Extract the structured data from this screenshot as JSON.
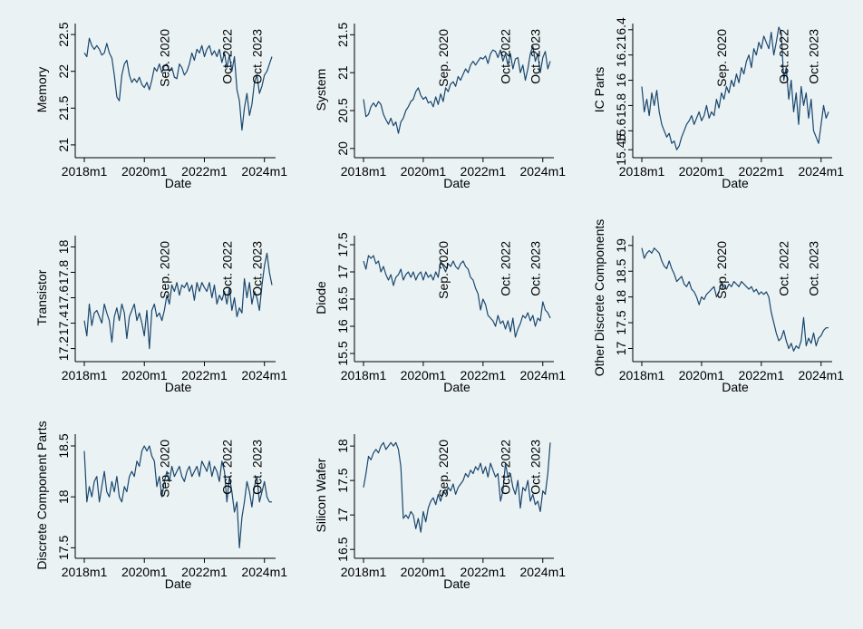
{
  "figure": {
    "x_axis_title": "Date",
    "x_ticks": [
      "2018m1",
      "2020m1",
      "2022m1",
      "2024m1"
    ],
    "annotations": [
      "Sep. 2020",
      "Oct. 2022",
      "Oct. 2023"
    ]
  },
  "chart_data": [
    {
      "type": "line",
      "ylabel": "Memory",
      "xlabel": "Date",
      "ylim": [
        20.9,
        22.6
      ],
      "y_ticks": [
        {
          "label": "21",
          "value": 21
        },
        {
          "label": "21.5",
          "value": 21.5
        },
        {
          "label": "22",
          "value": 22
        },
        {
          "label": "22.5",
          "value": 22.5
        }
      ],
      "start": "2018-01",
      "values": [
        22.25,
        22.2,
        22.45,
        22.35,
        22.3,
        22.35,
        22.3,
        22.22,
        22.25,
        22.38,
        22.25,
        22.18,
        21.95,
        21.65,
        21.6,
        21.95,
        22.1,
        22.15,
        21.95,
        21.85,
        21.9,
        21.85,
        21.92,
        21.82,
        21.78,
        21.85,
        21.75,
        21.88,
        22.05,
        22.0,
        22.1,
        21.98,
        22.08,
        22.1,
        22.0,
        22.05,
        21.92,
        21.9,
        22.1,
        22.05,
        21.95,
        22.0,
        22.1,
        22.25,
        22.15,
        22.3,
        22.25,
        22.35,
        22.2,
        22.3,
        22.35,
        22.22,
        22.28,
        22.2,
        22.3,
        22.12,
        22.25,
        22.05,
        22.22,
        22.0,
        22.2,
        21.75,
        21.6,
        21.2,
        21.5,
        21.7,
        21.4,
        21.55,
        21.85,
        21.95,
        21.7,
        21.8,
        21.95,
        22.0,
        22.1,
        22.2
      ],
      "marker_lines": [
        "2020-09",
        "2022-10",
        "2023-10"
      ]
    },
    {
      "type": "line",
      "ylabel": "System",
      "xlabel": "Date",
      "ylim": [
        19.95,
        21.6
      ],
      "y_ticks": [
        {
          "label": "20",
          "value": 20
        },
        {
          "label": "20.5",
          "value": 20.5
        },
        {
          "label": "21",
          "value": 21
        },
        {
          "label": "21.5",
          "value": 21.5
        }
      ],
      "start": "2018-01",
      "values": [
        20.65,
        20.42,
        20.45,
        20.55,
        20.6,
        20.55,
        20.62,
        20.58,
        20.45,
        20.38,
        20.32,
        20.4,
        20.3,
        20.35,
        20.2,
        20.35,
        20.4,
        20.5,
        20.55,
        20.62,
        20.65,
        20.75,
        20.8,
        20.7,
        20.65,
        20.68,
        20.6,
        20.62,
        20.55,
        20.68,
        20.58,
        20.72,
        20.62,
        20.8,
        20.75,
        20.85,
        20.88,
        20.82,
        20.95,
        20.9,
        20.98,
        21.05,
        21.0,
        21.1,
        21.15,
        21.1,
        21.15,
        21.2,
        21.18,
        21.22,
        21.12,
        21.25,
        21.3,
        21.28,
        21.2,
        21.3,
        21.15,
        21.25,
        21.1,
        21.25,
        21.05,
        21.18,
        21.2,
        21.0,
        21.1,
        20.9,
        21.05,
        21.25,
        21.35,
        21.15,
        21.25,
        21.0,
        21.2,
        21.28,
        21.05,
        21.15
      ],
      "marker_lines": [
        "2020-09",
        "2022-10",
        "2023-10"
      ]
    },
    {
      "type": "line",
      "ylabel": "IC Parts",
      "xlabel": "Date",
      "ylim": [
        15.43,
        16.42
      ],
      "y_ticks": [
        {
          "label": "15.45",
          "value": 15.45
        },
        {
          "label": "15.6",
          "value": 15.6
        },
        {
          "label": "15.8",
          "value": 15.8
        },
        {
          "label": "16",
          "value": 16
        },
        {
          "label": "16.2",
          "value": 16.2
        },
        {
          "label": "16.4",
          "value": 16.4
        }
      ],
      "start": "2018-01",
      "values": [
        15.95,
        15.75,
        15.85,
        15.72,
        15.9,
        15.8,
        15.92,
        15.75,
        15.65,
        15.6,
        15.55,
        15.58,
        15.5,
        15.52,
        15.45,
        15.48,
        15.55,
        15.6,
        15.65,
        15.68,
        15.72,
        15.65,
        15.7,
        15.75,
        15.68,
        15.72,
        15.8,
        15.7,
        15.75,
        15.72,
        15.85,
        15.78,
        15.9,
        15.85,
        15.95,
        15.9,
        16.0,
        15.95,
        16.05,
        15.98,
        16.1,
        16.05,
        16.15,
        16.2,
        16.1,
        16.25,
        16.2,
        16.3,
        16.25,
        16.35,
        16.3,
        16.25,
        16.38,
        16.2,
        16.3,
        16.42,
        16.38,
        16.0,
        16.1,
        15.85,
        16.0,
        15.75,
        15.9,
        15.65,
        15.95,
        15.8,
        15.9,
        15.7,
        15.85,
        15.6,
        15.55,
        15.5,
        15.65,
        15.8,
        15.7,
        15.75
      ],
      "marker_lines": [
        "2020-09",
        "2022-10",
        "2023-10"
      ]
    },
    {
      "type": "line",
      "ylabel": "Transistor",
      "xlabel": "Date",
      "ylim": [
        17.14,
        18.06
      ],
      "y_ticks": [
        {
          "label": "17.2",
          "value": 17.2
        },
        {
          "label": "17.4",
          "value": 17.4
        },
        {
          "label": "17.6",
          "value": 17.6
        },
        {
          "label": "17.8",
          "value": 17.8
        },
        {
          "label": "18",
          "value": 18
        }
      ],
      "start": "2018-01",
      "values": [
        17.42,
        17.3,
        17.55,
        17.38,
        17.48,
        17.5,
        17.45,
        17.4,
        17.55,
        17.48,
        17.42,
        17.25,
        17.45,
        17.52,
        17.42,
        17.55,
        17.48,
        17.28,
        17.45,
        17.5,
        17.55,
        17.42,
        17.48,
        17.4,
        17.3,
        17.5,
        17.2,
        17.5,
        17.55,
        17.45,
        17.48,
        17.42,
        17.5,
        17.62,
        17.55,
        17.7,
        17.65,
        17.72,
        17.62,
        17.7,
        17.68,
        17.72,
        17.65,
        17.7,
        17.58,
        17.72,
        17.65,
        17.72,
        17.68,
        17.65,
        17.72,
        17.6,
        17.7,
        17.55,
        17.62,
        17.58,
        17.65,
        17.55,
        17.68,
        17.5,
        17.6,
        17.45,
        17.52,
        17.48,
        17.75,
        17.6,
        17.72,
        17.55,
        17.65,
        17.6,
        17.5,
        17.7,
        17.85,
        17.95,
        17.8,
        17.7
      ],
      "marker_lines": [
        "2020-09",
        "2022-10",
        "2023-10"
      ]
    },
    {
      "type": "line",
      "ylabel": "Diode",
      "xlabel": "Date",
      "ylim": [
        15.45,
        17.6
      ],
      "y_ticks": [
        {
          "label": "15.5",
          "value": 15.5
        },
        {
          "label": "16",
          "value": 16
        },
        {
          "label": "16.5",
          "value": 16.5
        },
        {
          "label": "17",
          "value": 17
        },
        {
          "label": "17.5",
          "value": 17.5
        }
      ],
      "start": "2018-01",
      "values": [
        17.2,
        17.05,
        17.3,
        17.25,
        17.3,
        17.15,
        17.2,
        17.0,
        17.1,
        16.95,
        16.85,
        16.95,
        16.75,
        16.9,
        16.95,
        17.05,
        16.85,
        16.95,
        17.0,
        16.9,
        17.0,
        16.85,
        16.95,
        17.0,
        16.85,
        17.0,
        16.9,
        16.95,
        16.85,
        17.0,
        16.9,
        17.2,
        17.1,
        17.0,
        17.15,
        17.1,
        17.2,
        17.1,
        17.05,
        17.15,
        17.2,
        17.1,
        17.05,
        16.9,
        16.85,
        16.7,
        16.6,
        16.3,
        16.5,
        16.4,
        16.2,
        16.15,
        16.1,
        16.0,
        16.2,
        16.05,
        16.1,
        15.95,
        16.1,
        15.9,
        16.15,
        15.8,
        15.95,
        16.05,
        16.2,
        16.15,
        16.25,
        16.1,
        16.2,
        16.0,
        16.15,
        16.1,
        16.45,
        16.3,
        16.25,
        16.15
      ],
      "marker_lines": [
        "2020-09",
        "2022-10",
        "2023-10"
      ]
    },
    {
      "type": "line",
      "ylabel": "Other Discrete Components",
      "xlabel": "Date",
      "ylim": [
        16.85,
        19.12
      ],
      "y_ticks": [
        {
          "label": "17",
          "value": 17
        },
        {
          "label": "17.5",
          "value": 17.5
        },
        {
          "label": "18",
          "value": 18
        },
        {
          "label": "18.5",
          "value": 18.5
        },
        {
          "label": "19",
          "value": 19
        }
      ],
      "start": "2018-01",
      "values": [
        18.95,
        18.75,
        18.85,
        18.9,
        18.85,
        18.95,
        18.9,
        18.85,
        18.7,
        18.6,
        18.55,
        18.7,
        18.55,
        18.45,
        18.3,
        18.35,
        18.4,
        18.25,
        18.2,
        18.3,
        18.15,
        18.1,
        18.0,
        17.85,
        18.0,
        17.95,
        18.05,
        18.1,
        18.15,
        18.2,
        18.0,
        18.1,
        18.3,
        18.2,
        18.15,
        18.25,
        18.2,
        18.3,
        18.25,
        18.2,
        18.3,
        18.25,
        18.2,
        18.15,
        18.2,
        18.1,
        18.15,
        18.05,
        18.1,
        18.05,
        18.1,
        18.0,
        17.7,
        17.5,
        17.3,
        17.15,
        17.2,
        17.35,
        17.15,
        17.0,
        17.1,
        16.95,
        17.05,
        17.0,
        17.15,
        17.6,
        17.05,
        17.2,
        17.1,
        17.3,
        17.05,
        17.2,
        17.25,
        17.35,
        17.4,
        17.4
      ],
      "marker_lines": [
        "2020-09",
        "2022-10",
        "2023-10"
      ]
    },
    {
      "type": "line",
      "ylabel": "Discrete Component Parts",
      "xlabel": "Date",
      "ylim": [
        17.45,
        18.58
      ],
      "y_ticks": [
        {
          "label": "17.5",
          "value": 17.5
        },
        {
          "label": "18",
          "value": 18
        },
        {
          "label": "18.5",
          "value": 18.5
        }
      ],
      "start": "2018-01",
      "values": [
        18.45,
        17.95,
        18.1,
        18.0,
        18.15,
        18.2,
        17.95,
        18.1,
        18.25,
        18.05,
        18.0,
        18.15,
        18.05,
        18.2,
        18.0,
        17.95,
        18.1,
        18.05,
        18.2,
        18.25,
        18.2,
        18.35,
        18.3,
        18.45,
        18.5,
        18.45,
        18.5,
        18.4,
        18.35,
        18.1,
        18.2,
        18.0,
        18.15,
        18.25,
        18.15,
        18.3,
        18.2,
        18.25,
        18.3,
        18.2,
        18.15,
        18.25,
        18.3,
        18.2,
        18.25,
        18.3,
        18.2,
        18.35,
        18.3,
        18.25,
        18.35,
        18.2,
        18.3,
        18.25,
        18.15,
        18.35,
        18.25,
        17.95,
        18.2,
        18.05,
        17.85,
        17.95,
        17.5,
        17.8,
        17.95,
        18.15,
        18.05,
        17.9,
        18.1,
        18.2,
        17.95,
        18.05,
        18.15,
        18.0,
        17.95,
        17.95
      ],
      "marker_lines": [
        "2020-09",
        "2022-10",
        "2023-10"
      ]
    },
    {
      "type": "line",
      "ylabel": "Silicon Wafer",
      "xlabel": "Date",
      "ylim": [
        16.45,
        18.12
      ],
      "y_ticks": [
        {
          "label": "16.5",
          "value": 16.5
        },
        {
          "label": "17",
          "value": 17
        },
        {
          "label": "17.5",
          "value": 17.5
        },
        {
          "label": "18",
          "value": 18
        }
      ],
      "start": "2018-01",
      "values": [
        17.4,
        17.6,
        17.85,
        17.8,
        17.9,
        17.95,
        17.9,
        18.0,
        18.05,
        17.95,
        18.0,
        18.05,
        18.0,
        18.05,
        17.95,
        17.7,
        16.95,
        17.0,
        16.95,
        17.05,
        17.0,
        16.8,
        16.95,
        16.75,
        17.05,
        16.9,
        17.1,
        17.2,
        17.25,
        17.15,
        17.3,
        17.2,
        17.35,
        17.3,
        17.4,
        17.35,
        17.45,
        17.3,
        17.4,
        17.45,
        17.5,
        17.6,
        17.55,
        17.65,
        17.6,
        17.7,
        17.65,
        17.75,
        17.6,
        17.7,
        17.55,
        17.75,
        17.65,
        17.55,
        17.6,
        17.2,
        17.35,
        17.75,
        17.55,
        17.6,
        17.4,
        17.3,
        17.5,
        17.1,
        17.4,
        17.35,
        17.5,
        17.2,
        17.3,
        17.15,
        17.2,
        17.05,
        17.35,
        17.3,
        17.6,
        18.05
      ],
      "marker_lines": [
        "2020-09",
        "2022-10",
        "2023-10"
      ]
    }
  ]
}
